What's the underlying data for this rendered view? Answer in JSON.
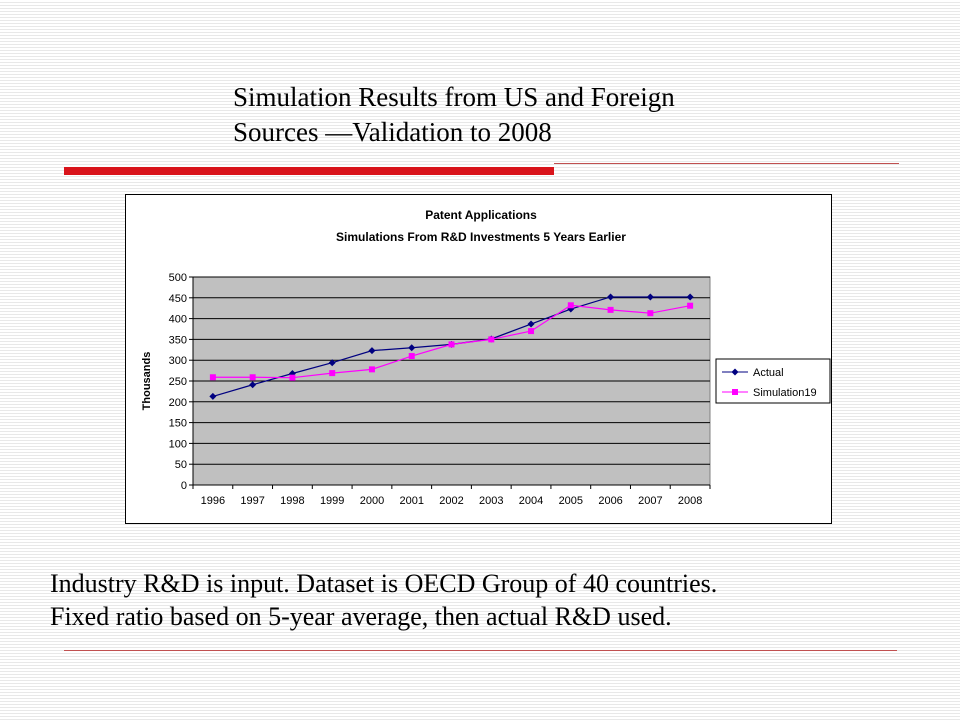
{
  "slide": {
    "title_lines": [
      "Simulation Results from US and Foreign",
      "Sources —Validation to 2008"
    ],
    "caption_lines": [
      "Industry R&D is input.  Dataset is OECD Group of 40 countries.",
      "Fixed ratio based on 5-year average, then actual R&D used."
    ],
    "accent_color": "#d9141b"
  },
  "chart_data": {
    "type": "line",
    "title": "Patent Applications",
    "subtitle": "Simulations From R&D Investments 5 Years Earlier",
    "xlabel": "",
    "ylabel": "Thousands",
    "categories": [
      "1996",
      "1997",
      "1998",
      "1999",
      "2000",
      "2001",
      "2002",
      "2003",
      "2004",
      "2005",
      "2006",
      "2007",
      "2008"
    ],
    "ylim": [
      0,
      500
    ],
    "yticks": [
      "0",
      "50",
      "100",
      "150",
      "200",
      "250",
      "300",
      "350",
      "400",
      "450",
      "500"
    ],
    "grid": true,
    "plot_background": "#c0c0c0",
    "legend_position": "right",
    "series": [
      {
        "name": "Actual",
        "color": "#000080",
        "marker": "diamond",
        "values": [
          213,
          241,
          268,
          294,
          323,
          330,
          338,
          351,
          387,
          423,
          452,
          452,
          452
        ]
      },
      {
        "name": "Simulation19",
        "color": "#ff00ff",
        "marker": "square",
        "values": [
          259,
          259,
          258,
          269,
          278,
          310,
          338,
          350,
          370,
          432,
          421,
          413,
          431
        ]
      }
    ]
  }
}
